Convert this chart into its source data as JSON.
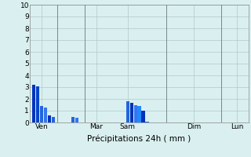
{
  "title": "",
  "xlabel": "Précipitations 24h ( mm )",
  "ylabel": "",
  "ylim": [
    0,
    10
  ],
  "xlim": [
    0,
    56
  ],
  "background_color": "#daf0f0",
  "grid_color": "#b0c8c8",
  "bars": [
    {
      "x": 1,
      "height": 3.2,
      "color": "#0033bb"
    },
    {
      "x": 2,
      "height": 3.1,
      "color": "#0044cc"
    },
    {
      "x": 3,
      "height": 1.4,
      "color": "#2266dd"
    },
    {
      "x": 4,
      "height": 1.3,
      "color": "#3377ee"
    },
    {
      "x": 5,
      "height": 0.6,
      "color": "#0033bb"
    },
    {
      "x": 6,
      "height": 0.5,
      "color": "#2266dd"
    },
    {
      "x": 11,
      "height": 0.5,
      "color": "#2266dd"
    },
    {
      "x": 12,
      "height": 0.4,
      "color": "#3377ee"
    },
    {
      "x": 25,
      "height": 1.8,
      "color": "#2266dd"
    },
    {
      "x": 26,
      "height": 1.7,
      "color": "#0033bb"
    },
    {
      "x": 27,
      "height": 1.5,
      "color": "#3377ee"
    },
    {
      "x": 28,
      "height": 1.4,
      "color": "#2288ff"
    },
    {
      "x": 29,
      "height": 1.0,
      "color": "#0033bb"
    },
    {
      "x": 30,
      "height": 0.1,
      "color": "#2266dd"
    }
  ],
  "xtick_positions": [
    3,
    17,
    25,
    42,
    53
  ],
  "xtick_labels": [
    "Ven",
    "Mar",
    "Sam",
    "Dim",
    "Lun"
  ],
  "day_separators": [
    7,
    14,
    35,
    49
  ],
  "bar_width": 0.85,
  "ytick_positions": [
    0,
    1,
    2,
    3,
    4,
    5,
    6,
    7,
    8,
    9,
    10
  ],
  "ytick_labels": [
    "0",
    "1",
    "2",
    "3",
    "4",
    "5",
    "6",
    "7",
    "8",
    "9",
    "10"
  ]
}
